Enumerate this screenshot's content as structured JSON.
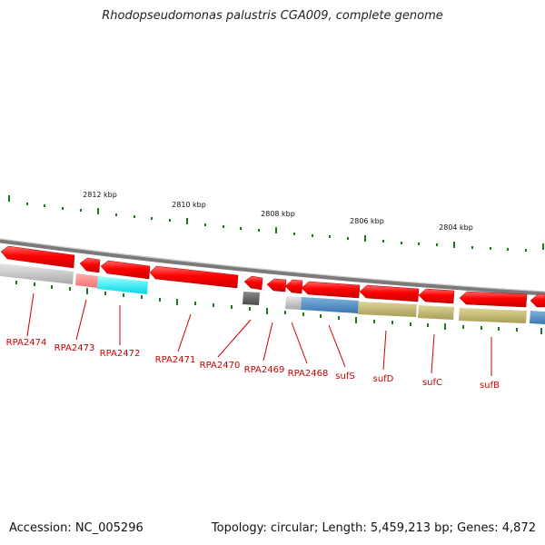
{
  "title": "Rhodopseudomonas palustris CGA009, complete genome",
  "footer": {
    "accession": "Accession: NC_005296",
    "summary": "Topology: circular; Length: 5,459,213 bp; Genes: 4,872"
  },
  "scale": {
    "labels": [
      "2812 kbp",
      "2810 kbp",
      "2808 kbp",
      "2806 kbp",
      "2804 kbp"
    ]
  },
  "genes": [
    "RPA2474",
    "RPA2473",
    "RPA2472",
    "RPA2471",
    "RPA2470",
    "RPA2469",
    "RPA2468",
    "sufS",
    "sufD",
    "sufC",
    "sufB"
  ],
  "colors": {
    "gene": "#ff0000",
    "backbone": "#888888",
    "tick": "#1a7a1a",
    "label": "#cc0000"
  }
}
